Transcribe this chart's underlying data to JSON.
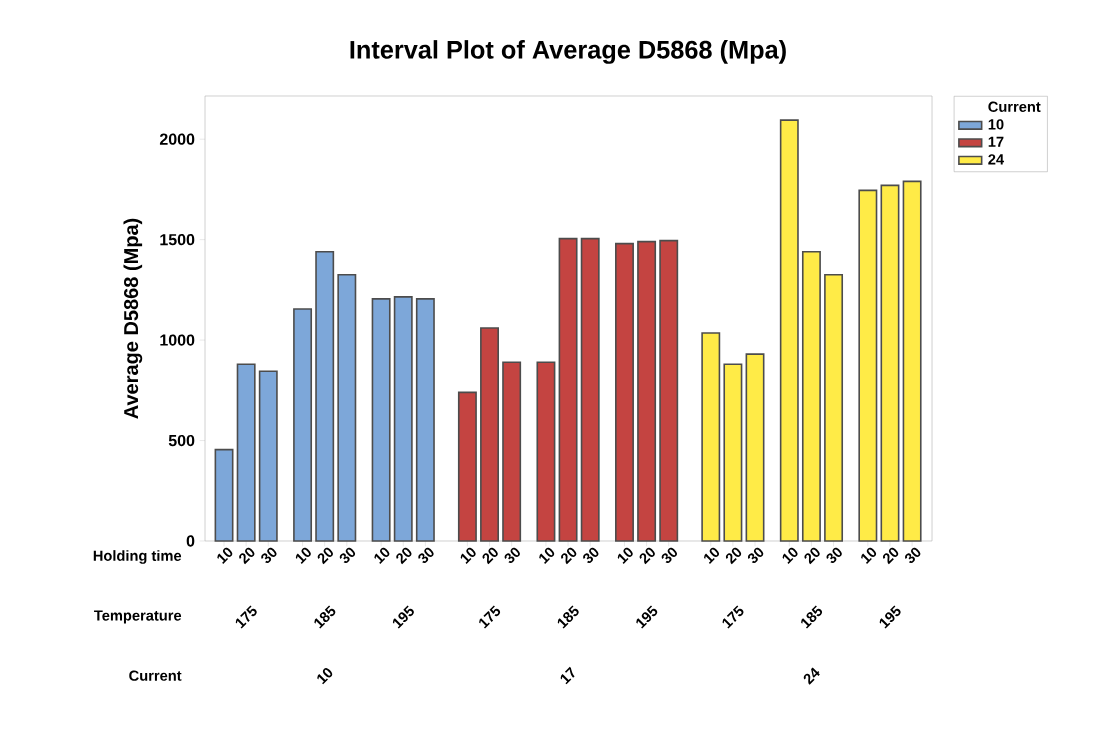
{
  "chart_data": {
    "type": "bar",
    "title": "Interval Plot of Average D5868 (Mpa)",
    "ylabel": "Average D5868 (Mpa)",
    "categories": [
      "10",
      "20",
      "30",
      "10",
      "20",
      "30",
      "10",
      "20",
      "30",
      "10",
      "20",
      "30",
      "10",
      "20",
      "30",
      "10",
      "20",
      "30",
      "10",
      "20",
      "30",
      "10",
      "20",
      "30",
      "10",
      "20",
      "30"
    ],
    "series": [
      {
        "name": "10",
        "color": "#7da7d9",
        "values": [
          455,
          880,
          845,
          1155,
          1440,
          1325,
          1205,
          1215,
          1205,
          null,
          null,
          null,
          null,
          null,
          null,
          null,
          null,
          null,
          null,
          null,
          null,
          null,
          null,
          null,
          null,
          null,
          null
        ]
      },
      {
        "name": "17",
        "color": "#c44441",
        "values": [
          null,
          null,
          null,
          null,
          null,
          null,
          null,
          null,
          null,
          740,
          1060,
          890,
          890,
          1505,
          1505,
          1480,
          1490,
          1495,
          null,
          null,
          null,
          null,
          null,
          null,
          null,
          null,
          null
        ]
      },
      {
        "name": "24",
        "color": "#ffeb47",
        "values": [
          null,
          null,
          null,
          null,
          null,
          null,
          null,
          null,
          null,
          null,
          null,
          null,
          null,
          null,
          null,
          null,
          null,
          null,
          1035,
          880,
          930,
          2095,
          1440,
          1325,
          1745,
          1770,
          1790
        ]
      }
    ],
    "legend_title": "Current",
    "legend": "right",
    "ylim": [
      0,
      2215
    ],
    "yticks": [
      0,
      500,
      1000,
      1500,
      2000
    ],
    "grid": false,
    "annotations": [
      "Holding time",
      "Temperature",
      "Current",
      "175",
      "185",
      "195",
      "175",
      "185",
      "195",
      "175",
      "185",
      "195",
      "10",
      "17",
      "24"
    ]
  }
}
